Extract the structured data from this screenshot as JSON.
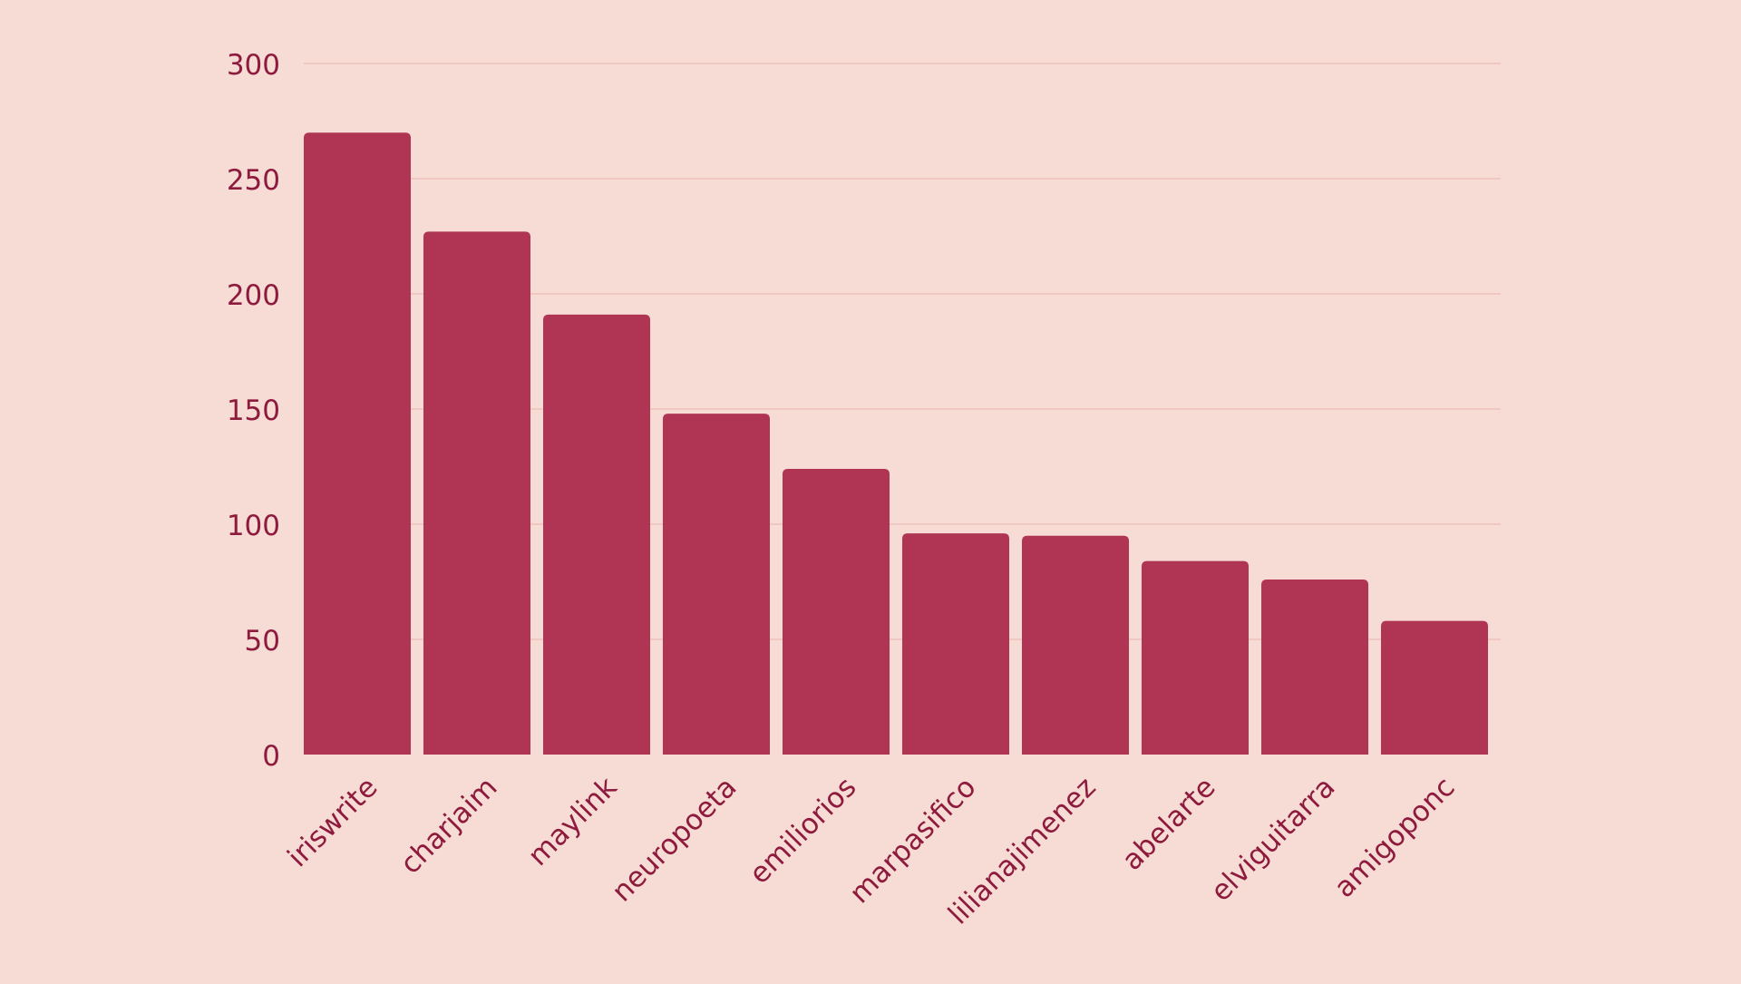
{
  "colors": {
    "background": "#f6dcd4",
    "bar": "#b03454",
    "text": "#8e1a3e",
    "grid": "#e8b4b0"
  },
  "chart_data": {
    "type": "bar",
    "title": "",
    "xlabel": "",
    "ylabel": "",
    "ylim": [
      0,
      300
    ],
    "yticks": [
      0,
      50,
      100,
      150,
      200,
      250,
      300
    ],
    "grid": true,
    "categories": [
      "iriswrite",
      "charjaim",
      "maylink",
      "neuropoeta",
      "emiliorios",
      "marpasifico",
      "lilianajimenez",
      "abelarte",
      "elviguitarra",
      "amigoponc"
    ],
    "values": [
      270,
      227,
      191,
      148,
      124,
      96,
      95,
      84,
      76,
      58
    ]
  }
}
